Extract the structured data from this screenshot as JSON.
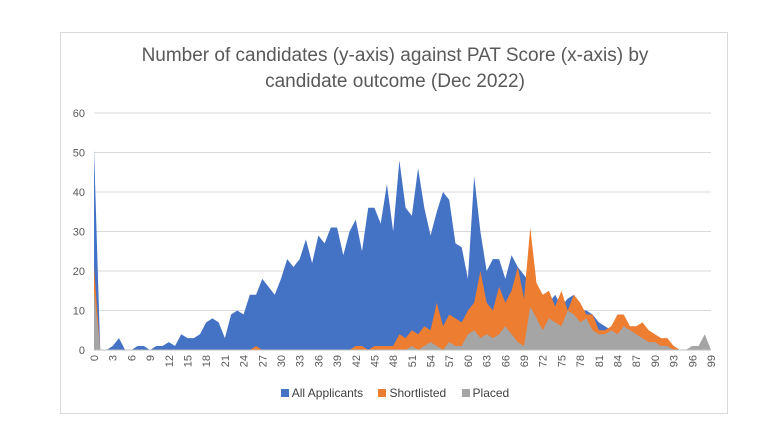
{
  "chart_data": {
    "type": "area",
    "title_lines": [
      "Number of candidates (y-axis) against PAT Score (x-axis) by",
      "candidate outcome (Dec 2022)"
    ],
    "xlabel": "",
    "ylabel": "",
    "xlim": [
      0,
      99
    ],
    "ylim": [
      0,
      60
    ],
    "yticks": [
      0,
      10,
      20,
      30,
      40,
      50,
      60
    ],
    "xticks": [
      0,
      3,
      6,
      9,
      12,
      15,
      18,
      21,
      24,
      27,
      30,
      33,
      36,
      39,
      42,
      45,
      48,
      51,
      54,
      57,
      60,
      63,
      66,
      69,
      72,
      75,
      78,
      81,
      84,
      87,
      90,
      93,
      96,
      99
    ],
    "grid": "horizontal",
    "legend_position": "bottom",
    "x": [
      0,
      1,
      2,
      3,
      4,
      5,
      6,
      7,
      8,
      9,
      10,
      11,
      12,
      13,
      14,
      15,
      16,
      17,
      18,
      19,
      20,
      21,
      22,
      23,
      24,
      25,
      26,
      27,
      28,
      29,
      30,
      31,
      32,
      33,
      34,
      35,
      36,
      37,
      38,
      39,
      40,
      41,
      42,
      43,
      44,
      45,
      46,
      47,
      48,
      49,
      50,
      51,
      52,
      53,
      54,
      55,
      56,
      57,
      58,
      59,
      60,
      61,
      62,
      63,
      64,
      65,
      66,
      67,
      68,
      69,
      70,
      71,
      72,
      73,
      74,
      75,
      76,
      77,
      78,
      79,
      80,
      81,
      82,
      83,
      84,
      85,
      86,
      87,
      88,
      89,
      90,
      91,
      92,
      93,
      94,
      95,
      96,
      97,
      98,
      99
    ],
    "series": [
      {
        "name": "All Applicants",
        "color": "#4472c4",
        "values": [
          51,
          0,
          0,
          1,
          3,
          0,
          0,
          1,
          1,
          0,
          1,
          1,
          2,
          1,
          4,
          3,
          3,
          4,
          7,
          8,
          7,
          3,
          9,
          10,
          9,
          14,
          14,
          18,
          16,
          14,
          18,
          23,
          21,
          23,
          28,
          22,
          29,
          27,
          31,
          31,
          24,
          30,
          33,
          25,
          36,
          36,
          32,
          42,
          30,
          48,
          36,
          34,
          46,
          36,
          29,
          35,
          40,
          38,
          27,
          26,
          18,
          44,
          30,
          20,
          23,
          23,
          18,
          24,
          21,
          19,
          17,
          14,
          13,
          12,
          14,
          11,
          13,
          14,
          10,
          10,
          9,
          7,
          6,
          5,
          5,
          7,
          6,
          5,
          4,
          4,
          3,
          2,
          2,
          1,
          0,
          0,
          1,
          1,
          0,
          0
        ]
      },
      {
        "name": "Shortlisted",
        "color": "#ed7d31",
        "values": [
          21,
          0,
          0,
          0,
          0,
          0,
          0,
          0,
          0,
          0,
          0,
          0,
          0,
          0,
          0,
          0,
          0,
          0,
          0,
          0,
          0,
          0,
          0,
          0,
          0,
          0,
          1,
          0,
          0,
          0,
          0,
          0,
          0,
          0,
          0,
          0,
          0,
          0,
          0,
          0,
          0,
          0,
          1,
          1,
          0,
          1,
          1,
          1,
          1,
          4,
          3,
          5,
          4,
          6,
          5,
          12,
          6,
          9,
          8,
          7,
          10,
          12,
          20,
          12,
          10,
          16,
          12,
          15,
          21,
          13,
          31,
          17,
          14,
          15,
          11,
          15,
          10,
          14,
          12,
          9,
          9,
          5,
          5,
          6,
          9,
          9,
          6,
          6,
          7,
          5,
          4,
          3,
          3,
          1,
          0,
          0,
          0,
          0,
          0,
          0
        ]
      },
      {
        "name": "Placed",
        "color": "#a5a5a5",
        "values": [
          15,
          0,
          0,
          0,
          0,
          0,
          0,
          0,
          0,
          0,
          0,
          0,
          0,
          0,
          0,
          0,
          0,
          0,
          0,
          0,
          0,
          0,
          0,
          0,
          0,
          0,
          0,
          0,
          0,
          0,
          0,
          0,
          0,
          0,
          0,
          0,
          0,
          0,
          0,
          0,
          0,
          0,
          0,
          0,
          0,
          0,
          0,
          0,
          0,
          0,
          0,
          1,
          0,
          1,
          2,
          1,
          0,
          2,
          1,
          1,
          4,
          5,
          3,
          4,
          3,
          4,
          6,
          4,
          2,
          1,
          11,
          8,
          5,
          8,
          7,
          6,
          10,
          9,
          7,
          8,
          5,
          4,
          4,
          5,
          4,
          6,
          5,
          4,
          3,
          2,
          2,
          1,
          1,
          0,
          0,
          0,
          1,
          1,
          4,
          0
        ]
      }
    ]
  }
}
